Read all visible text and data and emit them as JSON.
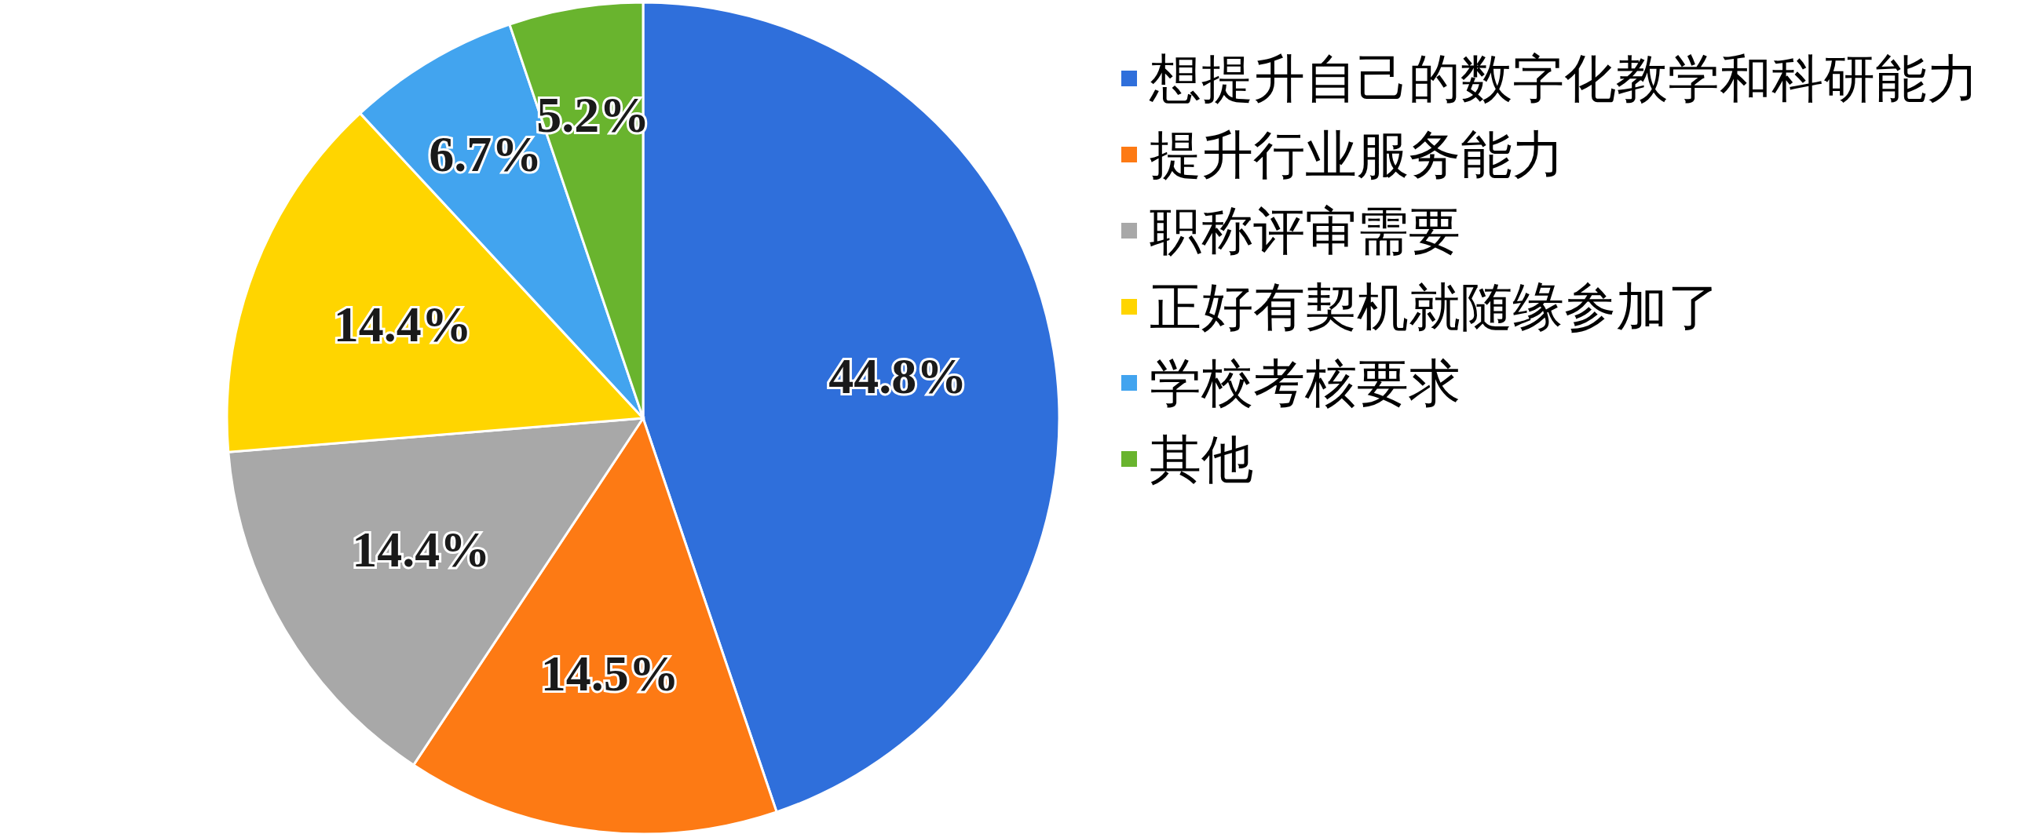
{
  "chart_data": {
    "type": "pie",
    "categories": [
      "想提升自己的数字化教学和科研能力",
      "提升行业服务能力",
      "职称评审需要",
      "正好有契机就随缘参加了",
      "学校考核要求",
      "其他"
    ],
    "values": [
      44.8,
      14.5,
      14.4,
      14.4,
      6.7,
      5.2
    ],
    "colors": [
      "#2f6fdb",
      "#fd7a14",
      "#a8a8a8",
      "#ffd500",
      "#42a4ef",
      "#69b42e"
    ],
    "value_labels": [
      "44.8%",
      "14.5%",
      "14.4%",
      "14.4%",
      "6.7%",
      "5.2%"
    ],
    "legend": "right"
  }
}
